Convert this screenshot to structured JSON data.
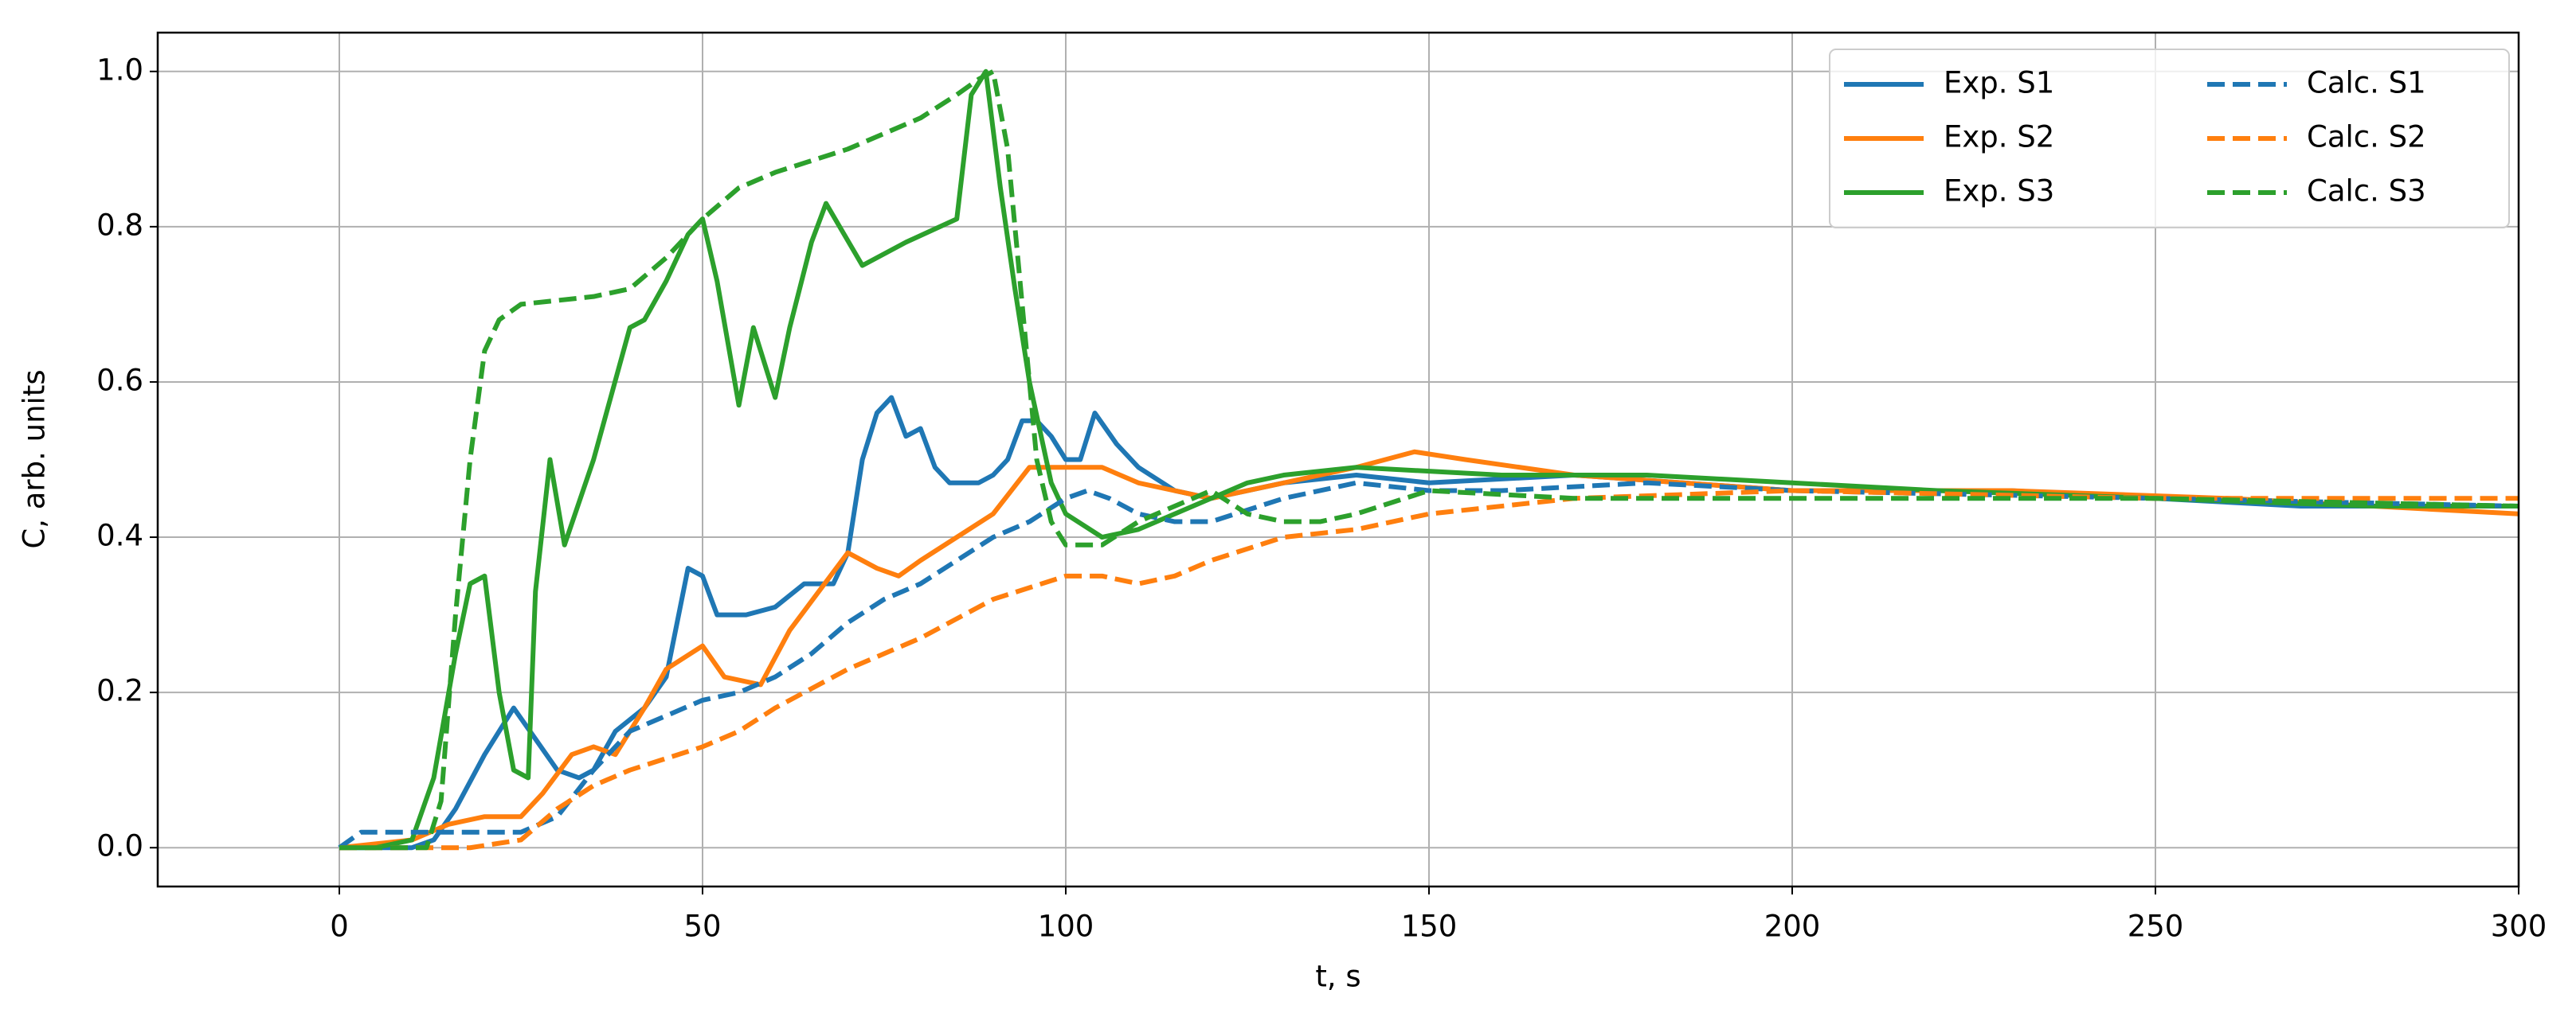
{
  "chart_data": {
    "type": "line",
    "xlabel": "t, s",
    "ylabel": "C, arb. units",
    "xlim": [
      -25,
      300
    ],
    "ylim": [
      -0.05,
      1.05
    ],
    "xticks": [
      0,
      50,
      100,
      150,
      200,
      250,
      300
    ],
    "yticks": [
      {
        "value": 0,
        "label": "0.0"
      },
      0.2,
      0.4,
      0.6,
      0.8,
      {
        "value": 1,
        "label": "1.0"
      }
    ],
    "grid": true,
    "legend": {
      "loc": "upper right",
      "ncol": 2
    },
    "series": [
      {
        "name": "Exp. S1",
        "color": "#1f77b4",
        "dash": false,
        "x": [
          0,
          10,
          13,
          16,
          20,
          24,
          27,
          30,
          33,
          35,
          38,
          42,
          45,
          48,
          50,
          52,
          56,
          60,
          64,
          68,
          70,
          72,
          74,
          76,
          78,
          80,
          82,
          84,
          88,
          90,
          92,
          94,
          96,
          98,
          100,
          102,
          104,
          107,
          110,
          115,
          120,
          130,
          140,
          150,
          170,
          200,
          230,
          250,
          270,
          300
        ],
        "values": [
          0,
          0,
          0.01,
          0.05,
          0.12,
          0.18,
          0.14,
          0.1,
          0.09,
          0.1,
          0.15,
          0.18,
          0.22,
          0.36,
          0.35,
          0.3,
          0.3,
          0.31,
          0.34,
          0.34,
          0.38,
          0.5,
          0.56,
          0.58,
          0.53,
          0.54,
          0.49,
          0.47,
          0.47,
          0.48,
          0.5,
          0.55,
          0.55,
          0.53,
          0.5,
          0.5,
          0.56,
          0.52,
          0.49,
          0.46,
          0.45,
          0.47,
          0.48,
          0.47,
          0.48,
          0.46,
          0.46,
          0.45,
          0.44,
          0.44
        ]
      },
      {
        "name": "Exp. S2",
        "color": "#ff7f0e",
        "dash": false,
        "x": [
          0,
          10,
          15,
          20,
          25,
          28,
          32,
          35,
          38,
          42,
          45,
          50,
          53,
          58,
          62,
          66,
          70,
          74,
          77,
          80,
          85,
          90,
          95,
          100,
          105,
          110,
          115,
          120,
          130,
          140,
          148,
          155,
          170,
          200,
          230,
          260,
          280,
          300
        ],
        "values": [
          0,
          0.01,
          0.03,
          0.04,
          0.04,
          0.07,
          0.12,
          0.13,
          0.12,
          0.18,
          0.23,
          0.26,
          0.22,
          0.21,
          0.28,
          0.33,
          0.38,
          0.36,
          0.35,
          0.37,
          0.4,
          0.43,
          0.49,
          0.49,
          0.49,
          0.47,
          0.46,
          0.45,
          0.47,
          0.49,
          0.51,
          0.5,
          0.48,
          0.46,
          0.46,
          0.45,
          0.44,
          0.43
        ]
      },
      {
        "name": "Exp. S3",
        "color": "#2ca02c",
        "dash": false,
        "x": [
          0,
          5,
          10,
          13,
          16,
          18,
          20,
          22,
          24,
          26,
          27,
          29,
          31,
          35,
          40,
          42,
          45,
          48,
          50,
          52,
          55,
          57,
          60,
          62,
          65,
          67,
          72,
          78,
          85,
          87,
          89,
          91,
          93,
          95,
          98,
          100,
          105,
          110,
          120,
          125,
          130,
          140,
          160,
          180,
          200,
          220,
          250,
          280,
          300
        ],
        "values": [
          0,
          0,
          0.01,
          0.09,
          0.25,
          0.34,
          0.35,
          0.2,
          0.1,
          0.09,
          0.33,
          0.5,
          0.39,
          0.5,
          0.67,
          0.68,
          0.73,
          0.79,
          0.81,
          0.73,
          0.57,
          0.67,
          0.58,
          0.67,
          0.78,
          0.83,
          0.75,
          0.78,
          0.81,
          0.97,
          1.0,
          0.85,
          0.72,
          0.6,
          0.47,
          0.43,
          0.4,
          0.41,
          0.45,
          0.47,
          0.48,
          0.49,
          0.48,
          0.48,
          0.47,
          0.46,
          0.45,
          0.44,
          0.44
        ]
      },
      {
        "name": "Calc. S1",
        "color": "#1f77b4",
        "dash": true,
        "x": [
          0,
          3,
          10,
          20,
          25,
          30,
          35,
          40,
          45,
          50,
          55,
          60,
          65,
          70,
          75,
          80,
          85,
          90,
          95,
          100,
          103,
          106,
          110,
          115,
          120,
          130,
          140,
          150,
          160,
          180,
          200,
          250,
          300
        ],
        "values": [
          0,
          0.02,
          0.02,
          0.02,
          0.02,
          0.04,
          0.1,
          0.15,
          0.17,
          0.19,
          0.2,
          0.22,
          0.25,
          0.29,
          0.32,
          0.34,
          0.37,
          0.4,
          0.42,
          0.45,
          0.46,
          0.45,
          0.43,
          0.42,
          0.42,
          0.45,
          0.47,
          0.46,
          0.46,
          0.47,
          0.46,
          0.45,
          0.44
        ]
      },
      {
        "name": "Calc. S2",
        "color": "#ff7f0e",
        "dash": true,
        "x": [
          0,
          10,
          18,
          25,
          30,
          35,
          40,
          50,
          55,
          60,
          70,
          80,
          90,
          100,
          105,
          110,
          115,
          120,
          130,
          140,
          150,
          170,
          200,
          250,
          300
        ],
        "values": [
          0,
          0,
          0,
          0.01,
          0.05,
          0.08,
          0.1,
          0.13,
          0.15,
          0.18,
          0.23,
          0.27,
          0.32,
          0.35,
          0.35,
          0.34,
          0.35,
          0.37,
          0.4,
          0.41,
          0.43,
          0.45,
          0.46,
          0.45,
          0.45
        ]
      },
      {
        "name": "Calc. S3",
        "color": "#2ca02c",
        "dash": true,
        "x": [
          0,
          12,
          14,
          16,
          18,
          20,
          22,
          25,
          30,
          35,
          40,
          45,
          50,
          55,
          60,
          70,
          80,
          85,
          88,
          90,
          92,
          94,
          96,
          98,
          100,
          105,
          110,
          120,
          125,
          130,
          135,
          140,
          150,
          170,
          200,
          250,
          300
        ],
        "values": [
          0,
          0,
          0.06,
          0.3,
          0.5,
          0.64,
          0.68,
          0.7,
          0.705,
          0.71,
          0.72,
          0.76,
          0.81,
          0.85,
          0.87,
          0.9,
          0.94,
          0.97,
          0.99,
          1.0,
          0.9,
          0.7,
          0.5,
          0.42,
          0.39,
          0.39,
          0.42,
          0.46,
          0.43,
          0.42,
          0.42,
          0.43,
          0.46,
          0.45,
          0.45,
          0.45,
          0.44
        ]
      }
    ]
  }
}
